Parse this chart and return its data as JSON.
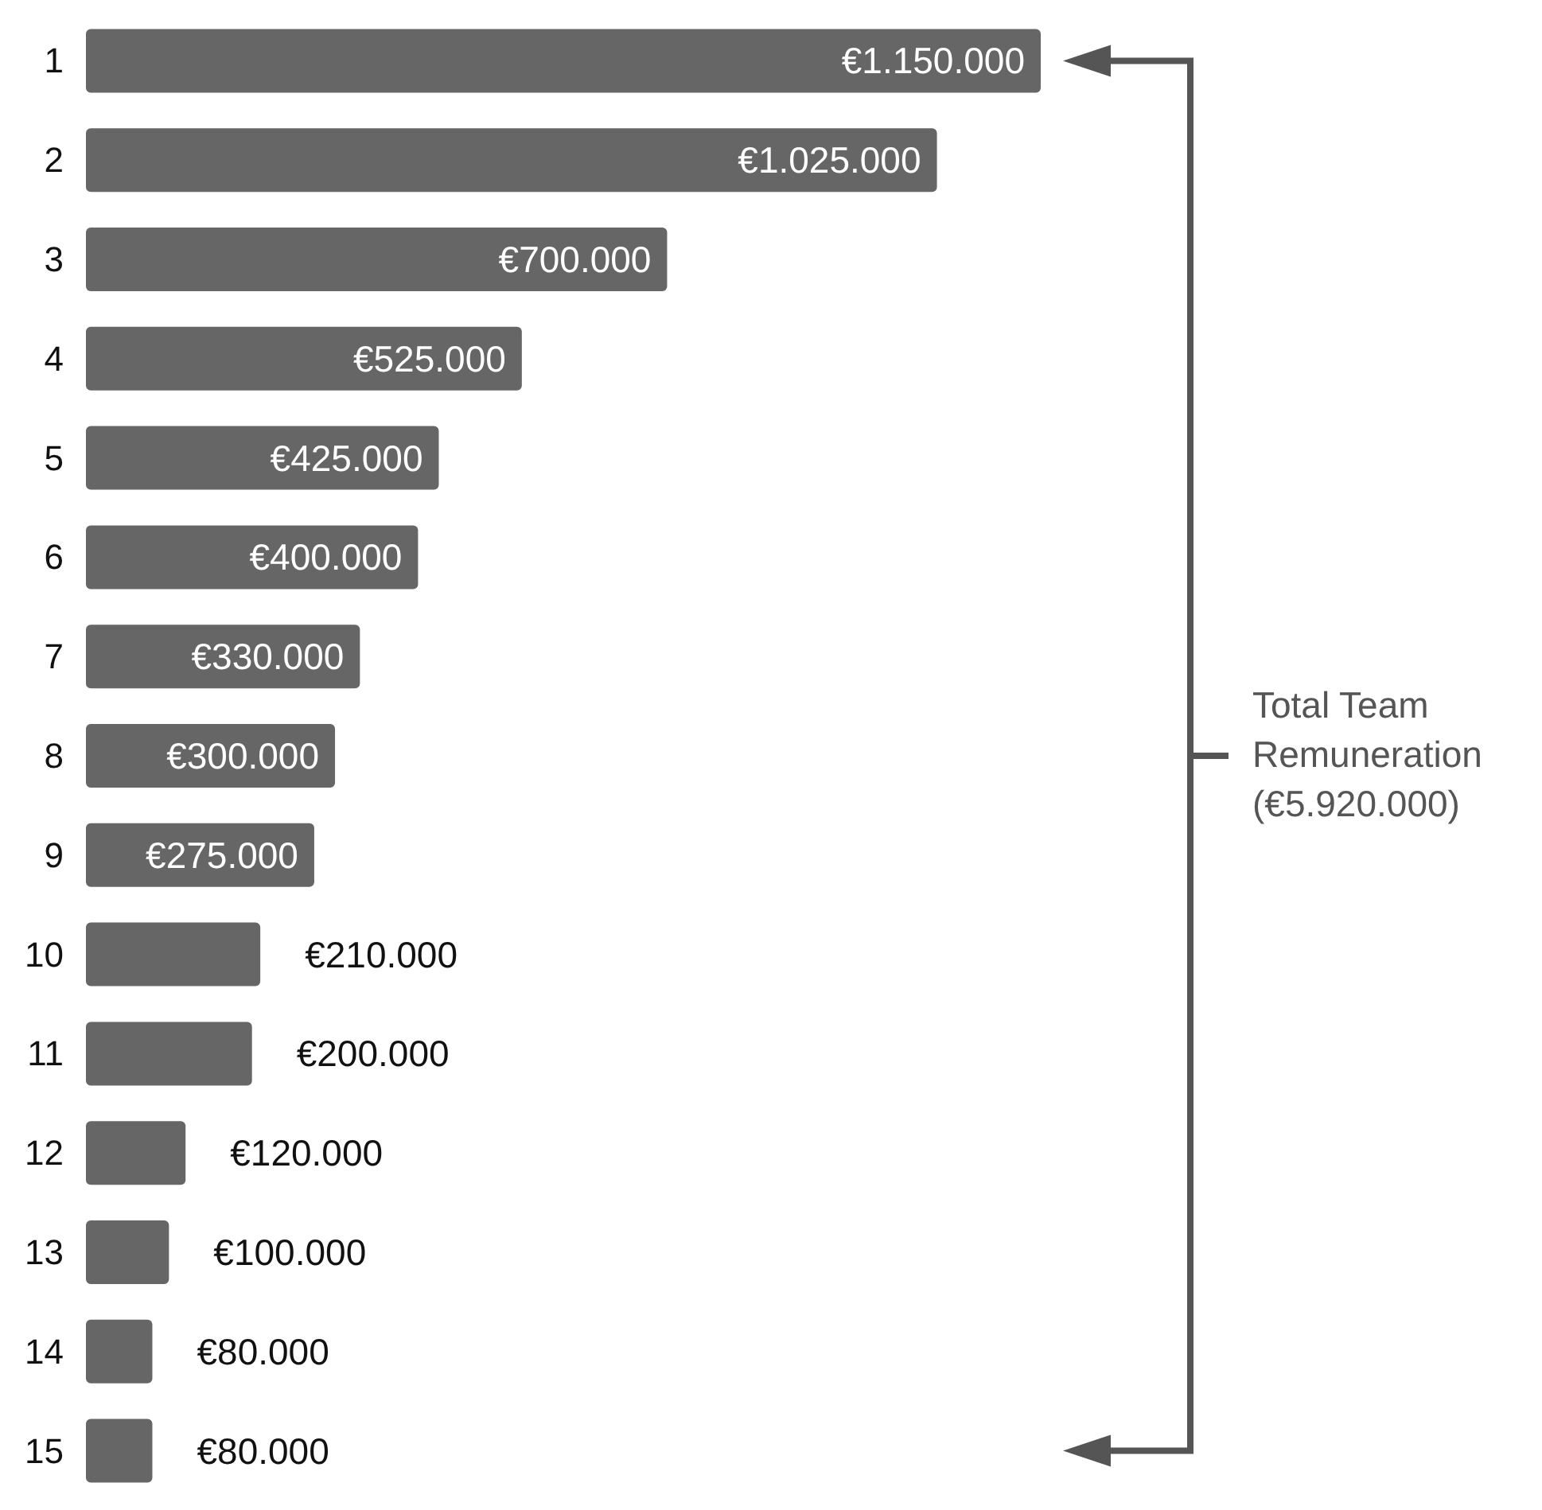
{
  "chart_data": {
    "type": "bar",
    "orientation": "horizontal",
    "categories": [
      "1",
      "2",
      "3",
      "4",
      "5",
      "6",
      "7",
      "8",
      "9",
      "10",
      "11",
      "12",
      "13",
      "14",
      "15"
    ],
    "values": [
      1150000,
      1025000,
      700000,
      525000,
      425000,
      400000,
      330000,
      300000,
      275000,
      210000,
      200000,
      120000,
      100000,
      80000,
      80000
    ],
    "value_labels": [
      "€1.150.000",
      "€1.025.000",
      "€700.000",
      "€525.000",
      "€425.000",
      "€400.000",
      "€330.000",
      "€300.000",
      "€275.000",
      "€210.000",
      "€200.000",
      "€120.000",
      "€100.000",
      "€80.000",
      "€80.000"
    ],
    "color": "#666666",
    "annotations": [
      "Total Team Remuneration (€5.920.000)"
    ]
  }
}
